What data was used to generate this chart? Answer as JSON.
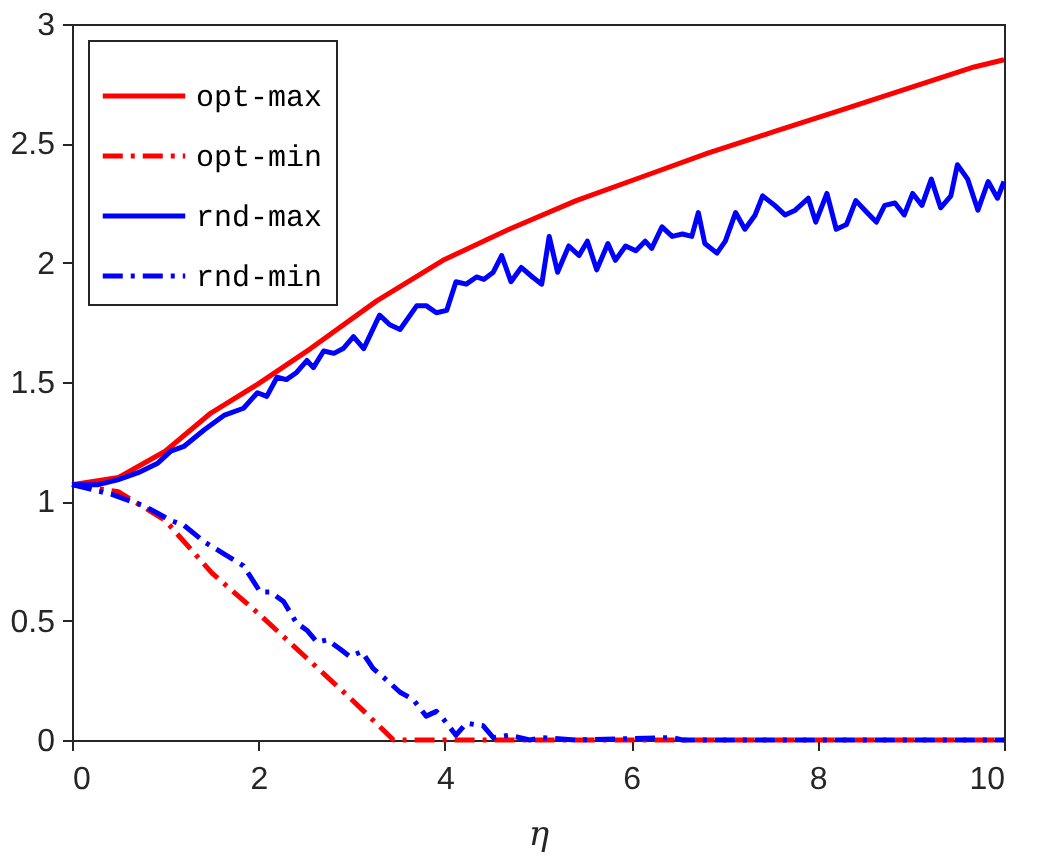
{
  "chart_data": {
    "type": "line",
    "xlabel": "η",
    "xlim": [
      0,
      10
    ],
    "ylim": [
      0,
      3
    ],
    "xticks": [
      0,
      2,
      4,
      6,
      8,
      10
    ],
    "yticks": [
      0,
      0.5,
      1,
      1.5,
      2,
      2.5,
      3
    ],
    "grid": false,
    "legend": "top left",
    "marker": "none",
    "series": [
      {
        "name": "opt-max",
        "color": "#ff0000",
        "line_style": "solid",
        "x": [
          0,
          0.5,
          1,
          1.49,
          1.99,
          2.56,
          3.27,
          3.98,
          4.69,
          5.41,
          6.12,
          6.83,
          7.54,
          8.26,
          8.97,
          9.68,
          10
        ],
        "values": [
          1.07,
          1.1,
          1.21,
          1.37,
          1.49,
          1.64,
          1.84,
          2.01,
          2.14,
          2.26,
          2.36,
          2.46,
          2.55,
          2.64,
          2.73,
          2.82,
          2.85
        ]
      },
      {
        "name": "opt-min",
        "color": "#ff0000",
        "line_style": "dashdot",
        "x": [
          0,
          0.5,
          1,
          1.5,
          2,
          2.5,
          3,
          3.45,
          10
        ],
        "values": [
          1.07,
          1.04,
          0.92,
          0.7,
          0.53,
          0.35,
          0.17,
          0,
          0
        ]
      },
      {
        "name": "rnd-max",
        "color": "#0000ff",
        "line_style": "solid",
        "x": [
          0,
          0.28,
          0.49,
          0.71,
          0.92,
          1.06,
          1.2,
          1.42,
          1.63,
          1.84,
          1.99,
          2.09,
          2.2,
          2.3,
          2.41,
          2.52,
          2.59,
          2.7,
          2.81,
          2.91,
          3.02,
          3.13,
          3.3,
          3.41,
          3.52,
          3.7,
          3.8,
          3.91,
          4.02,
          4.12,
          4.23,
          4.34,
          4.42,
          4.52,
          4.61,
          4.71,
          4.82,
          4.94,
          5.04,
          5.12,
          5.21,
          5.33,
          5.44,
          5.53,
          5.63,
          5.75,
          5.83,
          5.94,
          6.05,
          6.15,
          6.22,
          6.33,
          6.44,
          6.55,
          6.65,
          6.72,
          6.79,
          6.92,
          7.01,
          7.12,
          7.22,
          7.33,
          7.41,
          7.54,
          7.65,
          7.76,
          7.9,
          7.98,
          8.1,
          8.2,
          8.31,
          8.41,
          8.53,
          8.63,
          8.72,
          8.83,
          8.93,
          9.02,
          9.12,
          9.22,
          9.32,
          9.43,
          9.5,
          9.61,
          9.72,
          9.83,
          9.93,
          10
        ],
        "values": [
          1.07,
          1.07,
          1.09,
          1.12,
          1.16,
          1.21,
          1.23,
          1.3,
          1.36,
          1.39,
          1.455,
          1.44,
          1.52,
          1.51,
          1.54,
          1.59,
          1.56,
          1.63,
          1.62,
          1.64,
          1.69,
          1.64,
          1.78,
          1.74,
          1.72,
          1.82,
          1.82,
          1.79,
          1.8,
          1.92,
          1.91,
          1.94,
          1.93,
          1.96,
          2.03,
          1.92,
          1.98,
          1.94,
          1.91,
          2.11,
          1.96,
          2.07,
          2.03,
          2.09,
          1.97,
          2.08,
          2.01,
          2.07,
          2.05,
          2.09,
          2.06,
          2.15,
          2.11,
          2.12,
          2.11,
          2.21,
          2.08,
          2.04,
          2.09,
          2.21,
          2.14,
          2.2,
          2.28,
          2.24,
          2.2,
          2.22,
          2.27,
          2.17,
          2.29,
          2.14,
          2.16,
          2.26,
          2.21,
          2.17,
          2.24,
          2.25,
          2.2,
          2.29,
          2.24,
          2.35,
          2.23,
          2.28,
          2.41,
          2.35,
          2.22,
          2.34,
          2.27,
          2.34
        ]
      },
      {
        "name": "rnd-min",
        "color": "#0000ff",
        "line_style": "dashdot",
        "x": [
          0,
          0.42,
          0.78,
          1.06,
          1.2,
          1.42,
          1.63,
          1.84,
          2.02,
          2.13,
          2.27,
          2.41,
          2.52,
          2.63,
          2.74,
          2.88,
          2.98,
          3.11,
          3.23,
          3.38,
          3.52,
          3.66,
          3.8,
          3.91,
          3.98,
          4.12,
          4.23,
          4.41,
          4.52,
          4.69,
          4.91,
          5.05,
          5.41,
          6.44,
          6.55,
          10
        ],
        "values": [
          1.07,
          1.03,
          0.98,
          0.92,
          0.9,
          0.83,
          0.78,
          0.73,
          0.62,
          0.62,
          0.58,
          0.49,
          0.46,
          0.41,
          0.42,
          0.38,
          0.35,
          0.37,
          0.3,
          0.25,
          0.2,
          0.17,
          0.1,
          0.12,
          0.09,
          0.02,
          0.07,
          0.06,
          0.01,
          0.02,
          0,
          0.01,
          0,
          0.01,
          0,
          0
        ]
      }
    ]
  }
}
